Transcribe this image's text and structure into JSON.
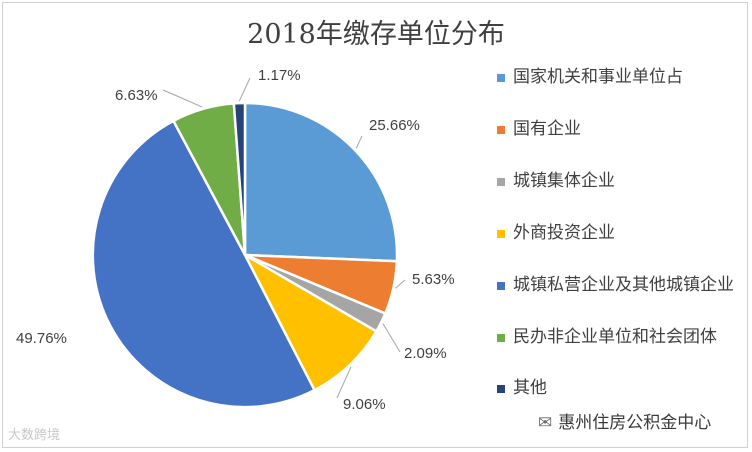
{
  "chart_data": {
    "type": "pie",
    "title": "2018年缴存单位分布",
    "slices": [
      {
        "label": "国家机关和事业单位占",
        "value": 25.66,
        "display": "25.66%",
        "color": "#5b9bd5"
      },
      {
        "label": "国有企业",
        "value": 5.63,
        "display": "5.63%",
        "color": "#ed7d31"
      },
      {
        "label": "城镇集体企业",
        "value": 2.09,
        "display": "2.09%",
        "color": "#a5a5a5"
      },
      {
        "label": "外商投资企业",
        "value": 9.06,
        "display": "9.06%",
        "color": "#ffc000"
      },
      {
        "label": "城镇私营企业及其他城镇企业",
        "value": 49.76,
        "display": "49.76%",
        "color": "#4472c4"
      },
      {
        "label": "民办非企业单位和社会团体",
        "value": 6.63,
        "display": "6.63%",
        "color": "#70ad47"
      },
      {
        "label": "其他",
        "value": 1.17,
        "display": "1.17%",
        "color": "#264478"
      }
    ],
    "legend_position": "right",
    "data_labels": "percent, outside with leader lines"
  },
  "watermarks": {
    "left": "大数跨境",
    "right": "惠州住房公积金中心"
  }
}
